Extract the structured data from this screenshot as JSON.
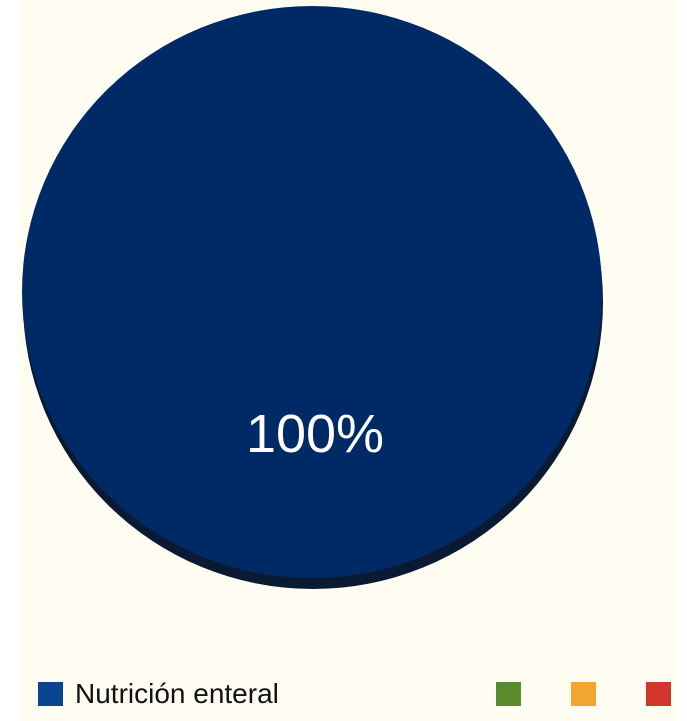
{
  "chart_data": {
    "type": "pie",
    "slices": [
      {
        "label": "Nutrición enteral",
        "value": 100,
        "data_label": "100%",
        "color": "#002a66"
      }
    ],
    "legend": [
      {
        "label": "Nutrición enteral",
        "color": "#0a4590"
      },
      {
        "label": "",
        "color": "#5a8c2e"
      },
      {
        "label": "",
        "color": "#f2a531"
      },
      {
        "label": "",
        "color": "#d2362a"
      }
    ],
    "legend_placement": "bottom"
  }
}
